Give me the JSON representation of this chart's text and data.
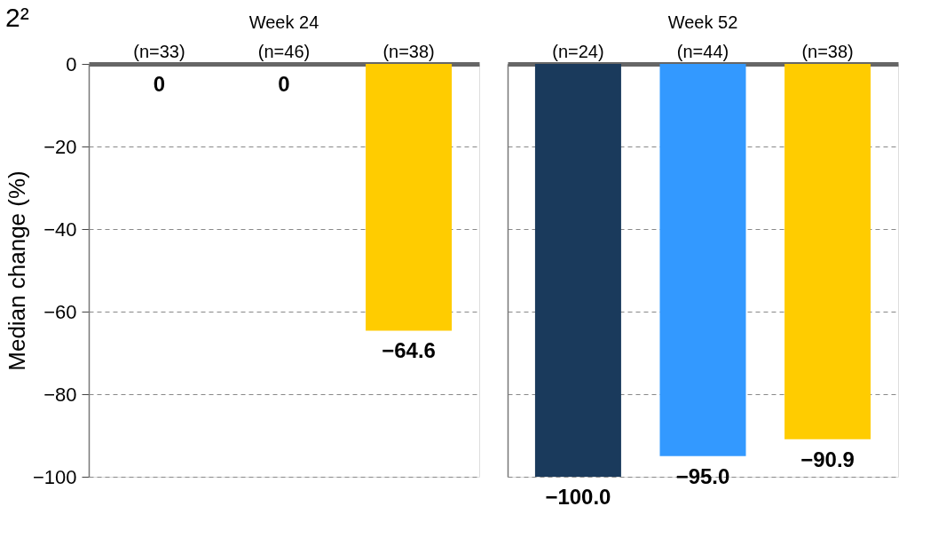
{
  "chart_data": [
    {
      "type": "bar",
      "title": "Week 24",
      "ylabel": "Median change (%)",
      "annotations": [
        "2²"
      ],
      "categories": [
        "(n=33)",
        "(n=46)",
        "(n=38)"
      ],
      "values": [
        0,
        0,
        -64.6
      ],
      "colors": [
        "#1a3a5c",
        "#3399ff",
        "#ffcc00"
      ],
      "value_labels": [
        "0",
        "0",
        "−64.6"
      ],
      "ylim": [
        -100,
        0
      ],
      "yticks": [
        0,
        -20,
        -40,
        -60,
        -80,
        -100
      ],
      "grid": "y",
      "line_style": "dashed"
    },
    {
      "type": "bar",
      "title": "Week 52",
      "categories": [
        "(n=24)",
        "(n=44)",
        "(n=38)"
      ],
      "values": [
        -100.0,
        -95.0,
        -90.9
      ],
      "colors": [
        "#1a3a5c",
        "#3399ff",
        "#ffcc00"
      ],
      "value_labels": [
        "−100.0",
        "−95.0",
        "−90.9"
      ],
      "ylim": [
        -100,
        0
      ],
      "yticks": [
        0,
        -20,
        -40,
        -60,
        -80,
        -100
      ],
      "grid": "y",
      "line_style": "dashed",
      "tick_labels": "x"
    }
  ]
}
